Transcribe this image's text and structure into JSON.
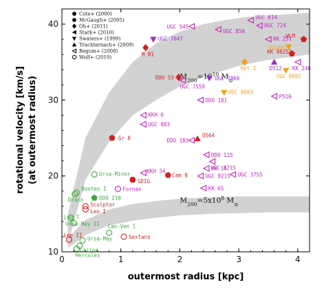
{
  "chart_data": {
    "type": "scatter",
    "xlabel": "outermost radius [kpc]",
    "ylabel_line1": "rotational velocity [km/s]",
    "ylabel_line2": "(at outermost radius)",
    "xlim": [
      0,
      4.2
    ],
    "ylim": [
      10,
      42
    ],
    "xticks": [
      0,
      1,
      2,
      3,
      4
    ],
    "yticks": [
      10,
      20,
      30,
      40
    ],
    "grid": false,
    "legend_position": "top-left",
    "legend": [
      {
        "label": "Cote+ (2000)",
        "marker": "circle-filled"
      },
      {
        "label": "McGaugh+ (2005)",
        "marker": "pentagon-filled"
      },
      {
        "label": "Oh+ (2011)",
        "marker": "diamond-filled"
      },
      {
        "label": "Stark+ (2010)",
        "marker": "tri-left-filled"
      },
      {
        "label": "Swaters+ (1999)",
        "marker": "tri-down-filled"
      },
      {
        "label": "Trachternach+ (2009)",
        "marker": "tri-up-filled"
      },
      {
        "label": "Begum+ (2008)",
        "marker": "tri-left-open"
      },
      {
        "label": "Wolf+ (2010)",
        "marker": "circle-open"
      }
    ],
    "bands": [
      {
        "prefix": "M",
        "sub": "200",
        "eq": "=10",
        "sup": "10",
        "unit": " M",
        "unit_sub": "⊙",
        "label_at": [
          2.0,
          32.8
        ],
        "lower": [
          [
            0.1,
            11.0
          ],
          [
            0.4,
            19.5
          ],
          [
            0.8,
            24.5
          ],
          [
            1.2,
            28.0
          ],
          [
            1.6,
            30.0
          ],
          [
            2.0,
            31.8
          ],
          [
            2.5,
            33.3
          ],
          [
            3.0,
            34.5
          ],
          [
            3.5,
            35.3
          ],
          [
            4.2,
            36.0
          ]
        ],
        "upper": [
          [
            0.1,
            15.0
          ],
          [
            0.4,
            25.0
          ],
          [
            0.8,
            31.0
          ],
          [
            1.2,
            35.0
          ],
          [
            1.6,
            37.5
          ],
          [
            2.0,
            39.0
          ],
          [
            2.4,
            40.0
          ],
          [
            2.8,
            40.6
          ],
          [
            3.2,
            41.0
          ],
          [
            3.8,
            41.3
          ],
          [
            4.2,
            41.5
          ]
        ]
      },
      {
        "prefix": "M",
        "sub": "200",
        "eq": "=5x10",
        "sup": "8",
        "unit": " M",
        "unit_sub": "⊙",
        "label_at": [
          2.0,
          16.5
        ],
        "lower": [
          [
            0.1,
            10.5
          ],
          [
            0.4,
            12.2
          ],
          [
            0.8,
            13.5
          ],
          [
            1.2,
            14.1
          ],
          [
            1.6,
            14.5
          ],
          [
            2.0,
            14.8
          ],
          [
            2.5,
            15.0
          ],
          [
            3.0,
            15.1
          ],
          [
            3.5,
            15.2
          ],
          [
            4.2,
            15.2
          ]
        ],
        "upper": [
          [
            0.1,
            11.8
          ],
          [
            0.4,
            14.2
          ],
          [
            0.8,
            15.6
          ],
          [
            1.2,
            16.3
          ],
          [
            1.6,
            16.7
          ],
          [
            2.0,
            17.0
          ],
          [
            2.5,
            17.2
          ],
          [
            3.0,
            17.3
          ],
          [
            3.5,
            17.3
          ],
          [
            4.2,
            17.3
          ]
        ]
      }
    ],
    "points": [
      {
        "label": "WLM",
        "x": 4.1,
        "y": 38,
        "marker": "pentagon-filled",
        "color": "#d42020",
        "lx": -26,
        "ly": -2
      },
      {
        "label": "UGC 614",
        "x": 3.2,
        "y": 40.5,
        "marker": "tri-left-open",
        "color": "#c01ec0",
        "lx": 7,
        "ly": -2
      },
      {
        "label": "UGC 724",
        "x": 3.35,
        "y": 39.8,
        "marker": "tri-left-open",
        "color": "#c01ec0",
        "lx": 7,
        "ly": 2
      },
      {
        "label": "UGC 545",
        "x": 2.2,
        "y": 39.7,
        "marker": "tri-left-open",
        "color": "#c01ec0",
        "lx": -36,
        "ly": 3
      },
      {
        "label": "UGC 850",
        "x": 2.65,
        "y": 39.3,
        "marker": "tri-left-open",
        "color": "#c01ec0",
        "lx": 7,
        "ly": 5
      },
      {
        "label": "UGC 7047",
        "x": 1.55,
        "y": 38.0,
        "marker": "tri-down-filled",
        "color": "#9a2ec8",
        "lx": 7,
        "ly": 2
      },
      {
        "label": "M 81",
        "x": 1.42,
        "y": 36.9,
        "marker": "diamond-filled",
        "color": "#d42020",
        "lx": -6,
        "ly": 12
      },
      {
        "label": "KK 251",
        "x": 3.5,
        "y": 38.0,
        "marker": "tri-left-open",
        "color": "#c01ec0",
        "lx": 7,
        "ly": 2
      },
      {
        "label": "KK 98251",
        "x": 3.9,
        "y": 36.1,
        "marker": "pentagon-filled",
        "color": "#d42020",
        "lx": -36,
        "ly": 0
      },
      {
        "label": "UGCA92",
        "x": 3.85,
        "y": 37.0,
        "marker": "tri-down-filled",
        "color": "#f0a020",
        "lx": -30,
        "ly": 4
      },
      {
        "label": "Hol I",
        "x": 3.1,
        "y": 35.0,
        "marker": "diamond-filled",
        "color": "#f0a020",
        "lx": -6,
        "ly": 12
      },
      {
        "label": "D512",
        "x": 3.6,
        "y": 35.0,
        "marker": "tri-up-filled",
        "color": "#9a2ec8",
        "lx": -7,
        "ly": 12
      },
      {
        "label": "KK 246",
        "x": 4.0,
        "y": 35.0,
        "marker": "tri-left-open",
        "color": "#c01ec0",
        "lx": -8,
        "ly": 12
      },
      {
        "label": "UGC 8892",
        "x": 3.8,
        "y": 33.9,
        "marker": "tri-down-filled",
        "color": "#f0a020",
        "lx": -14,
        "ly": 11
      },
      {
        "label": "DDO 53",
        "x": 1.98,
        "y": 33.0,
        "marker": "diamond-filled",
        "color": "#d42020",
        "lx": -34,
        "ly": 3
      },
      {
        "label": "UGC 7559",
        "x": 2.05,
        "y": 32.6,
        "marker": "tri-left-open",
        "color": "#c01ec0",
        "lx": -4,
        "ly": 12
      },
      {
        "label": "UGC 7866",
        "x": 2.5,
        "y": 32.9,
        "marker": "tri-down-filled",
        "color": "#9a2ec8",
        "lx": 8,
        "ly": 3
      },
      {
        "label": "UGC 8683",
        "x": 2.75,
        "y": 31.0,
        "marker": "tri-down-filled",
        "color": "#f0a020",
        "lx": 6,
        "ly": 2
      },
      {
        "label": "DDO 181",
        "x": 2.35,
        "y": 30.0,
        "marker": "tri-left-open",
        "color": "#c01ec0",
        "lx": 7,
        "ly": 3
      },
      {
        "label": "P516",
        "x": 3.6,
        "y": 30.5,
        "marker": "tri-left-open",
        "color": "#c01ec0",
        "lx": 7,
        "ly": 3
      },
      {
        "label": "KKH 6",
        "x": 1.38,
        "y": 28.0,
        "marker": "tri-left-open",
        "color": "#c01ec0",
        "lx": 7,
        "ly": 2
      },
      {
        "label": "UGC 883",
        "x": 1.38,
        "y": 26.8,
        "marker": "tri-left-open",
        "color": "#c01ec0",
        "lx": 7,
        "ly": 3
      },
      {
        "label": "Gr 8",
        "x": 0.85,
        "y": 25.0,
        "marker": "pentagon-filled",
        "color": "#d42020",
        "lx": 9,
        "ly": 3
      },
      {
        "label": "DDO 183",
        "x": 2.2,
        "y": 24.7,
        "marker": "tri-left-open",
        "color": "#c01ec0",
        "lx": -36,
        "ly": 3
      },
      {
        "label": "D564",
        "x": 2.3,
        "y": 24.9,
        "marker": "tri-up-filled",
        "color": "#d42020",
        "lx": 7,
        "ly": -2
      },
      {
        "label": "DDO 125",
        "x": 2.45,
        "y": 22.8,
        "marker": "tri-left-open",
        "color": "#c01ec0",
        "lx": 7,
        "ly": 3
      },
      {
        "label": "UGC 8215",
        "x": 2.55,
        "y": 21.9,
        "marker": "tri-left-open",
        "color": "#c01ec0",
        "lx": -2,
        "ly": 12
      },
      {
        "label": "KK 14",
        "x": 2.45,
        "y": 21.0,
        "marker": "tri-left-open",
        "color": "#c01ec0",
        "lx": 7,
        "ly": 3
      },
      {
        "label": "UGC 3755",
        "x": 2.9,
        "y": 20.2,
        "marker": "tri-left-open",
        "color": "#c01ec0",
        "lx": 7,
        "ly": 3
      },
      {
        "label": "KKH 34",
        "x": 1.38,
        "y": 20.4,
        "marker": "tri-left-open",
        "color": "#c01ec0",
        "lx": 5,
        "ly": 0
      },
      {
        "label": "Cam B",
        "x": 1.8,
        "y": 20.1,
        "marker": "pentagon-filled",
        "color": "#d42020",
        "lx": 6,
        "ly": 3
      },
      {
        "label": "SDIG",
        "x": 1.2,
        "y": 19.5,
        "marker": "circle-filled",
        "color": "#d42020",
        "lx": 7,
        "ly": 5
      },
      {
        "label": "UGC 8215",
        "x": 2.35,
        "y": 20.0,
        "marker": "tri-left-open",
        "color": "#c01ec0",
        "lx": 7,
        "ly": 3
      },
      {
        "label": "KK 65",
        "x": 2.4,
        "y": 18.4,
        "marker": "tri-left-open",
        "color": "#c01ec0",
        "lx": 7,
        "ly": 3
      },
      {
        "label": "Fornax",
        "x": 0.95,
        "y": 18.3,
        "marker": "circle-open",
        "color": "#c01ec0",
        "lx": 7,
        "ly": 3
      },
      {
        "label": "Ursa-Minor",
        "x": 0.55,
        "y": 20.2,
        "marker": "circle-open",
        "color": "#3aaa3a",
        "lx": 7,
        "ly": 2
      },
      {
        "label": "Bootes I",
        "x": 0.25,
        "y": 17.8,
        "marker": "circle-open",
        "color": "#3aaa3a",
        "lx": 7,
        "ly": -3
      },
      {
        "label": "Draco",
        "x": 0.22,
        "y": 17.6,
        "marker": "circle-open",
        "color": "#3aaa3a",
        "lx": -10,
        "ly": 11
      },
      {
        "label": "DDO 210",
        "x": 0.55,
        "y": 17.1,
        "marker": "pentagon-filled",
        "color": "#3aaa3a",
        "lx": 7,
        "ly": 3
      },
      {
        "label": "Sculptor",
        "x": 0.4,
        "y": 16.0,
        "marker": "circle-open",
        "color": "#d42020",
        "lx": 7,
        "ly": 0
      },
      {
        "label": "Leo I",
        "x": 0.4,
        "y": 15.6,
        "marker": "circle-open",
        "color": "#d42020",
        "lx": 7,
        "ly": 6
      },
      {
        "label": "Leo T",
        "x": 0.15,
        "y": 14.5,
        "marker": "circle-open",
        "color": "#3aaa3a",
        "lx": -10,
        "ly": 2
      },
      {
        "label": "Ursa-May II",
        "x": 0.2,
        "y": 13.8,
        "marker": "circle-open",
        "color": "#3aaa3a",
        "lx": -12,
        "ly": 4
      },
      {
        "label": "Can-Ven I",
        "x": 0.8,
        "y": 12.5,
        "marker": "circle-open",
        "color": "#3aaa3a",
        "lx": -2,
        "ly": -7
      },
      {
        "label": "Sextans",
        "x": 1.05,
        "y": 12.0,
        "marker": "circle-open",
        "color": "#d42020",
        "lx": 7,
        "ly": 3
      },
      {
        "label": "Leo II",
        "x": 0.12,
        "y": 11.6,
        "marker": "circle-open",
        "color": "#d42020",
        "lx": -8,
        "ly": -4
      },
      {
        "label": "Ursa-May",
        "x": 0.35,
        "y": 11.5,
        "marker": "circle-open",
        "color": "#3aaa3a",
        "lx": 7,
        "ly": 0
      },
      {
        "label": "Carina",
        "x": 0.3,
        "y": 10.8,
        "marker": "circle-open",
        "color": "#3aaa3a",
        "lx": 0,
        "ly": 9
      },
      {
        "label": "Hercules",
        "x": 0.25,
        "y": 10.4,
        "marker": "circle-open",
        "color": "#3aaa3a",
        "lx": -2,
        "ly": 12
      }
    ]
  }
}
